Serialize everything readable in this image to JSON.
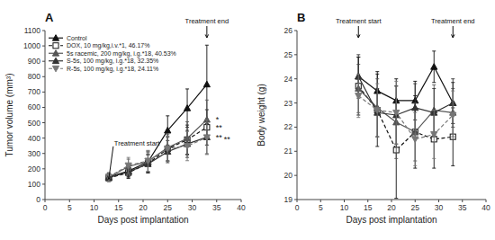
{
  "chart_data": [
    {
      "type": "line",
      "title": "A",
      "xlabel": "Days post implantation",
      "ylabel": "Tumor volume (mm³)",
      "x": [
        13,
        17,
        21,
        25,
        29,
        33
      ],
      "xlim": [
        0,
        40
      ],
      "ylim": [
        0,
        1100
      ],
      "xticks": [
        0,
        5,
        10,
        15,
        20,
        25,
        30,
        35,
        40
      ],
      "yticks": [
        0,
        100,
        200,
        300,
        400,
        500,
        600,
        700,
        800,
        900,
        1000,
        1100
      ],
      "grid": false,
      "legend": "upper left",
      "series": [
        {
          "name": "Control",
          "color": "#111111",
          "marker": "triangle-up",
          "line_style": "solid",
          "values": [
            148,
            185,
            245,
            450,
            595,
            750
          ],
          "errors": [
            22,
            35,
            65,
            95,
            125,
            255
          ]
        },
        {
          "name": "DOX, 10 mg/kg,i.v.*1, 46.17%",
          "color": "#111111",
          "marker": "square-open",
          "line_style": "dashed",
          "values": [
            140,
            175,
            235,
            330,
            390,
            470
          ],
          "errors": [
            22,
            38,
            62,
            78,
            95,
            115
          ]
        },
        {
          "name": "5s racemic, 200 mg/kg, i.g.*18, 40.53%",
          "color": "#555555",
          "marker": "triangle-up",
          "line_style": "solid",
          "values": [
            145,
            215,
            248,
            338,
            398,
            520
          ],
          "errors": [
            25,
            48,
            68,
            88,
            108,
            128
          ]
        },
        {
          "name": "S-5s, 100 mg/kg, i.g.*18, 32.35%",
          "color": "#333333",
          "marker": "triangle-up",
          "line_style": "solid",
          "values": [
            143,
            180,
            232,
            312,
            362,
            406
          ],
          "errors": [
            25,
            38,
            58,
            72,
            88,
            108
          ]
        },
        {
          "name": "R-5s, 100 mg/kg, i.g.*18, 24.11%",
          "color": "#777777",
          "marker": "triangle-down",
          "line_style": "dashed",
          "values": [
            148,
            222,
            252,
            332,
            348,
            405
          ],
          "errors": [
            28,
            52,
            68,
            82,
            95,
            112
          ]
        }
      ],
      "annotations": [
        {
          "text": "Treatment start",
          "x": 13
        },
        {
          "text": "Treatment end",
          "x": 33
        },
        {
          "text": "*",
          "x": 34.8,
          "y": 520
        },
        {
          "text": "**",
          "x": 34.8,
          "y": 468
        },
        {
          "text": "**",
          "x": 34.8,
          "y": 406
        },
        {
          "text": "**",
          "x": 34.8,
          "y": 390
        }
      ]
    },
    {
      "type": "line",
      "title": "B",
      "xlabel": "Days post implantation",
      "ylabel": "Body weight (g)",
      "x": [
        13,
        17,
        21,
        25,
        29,
        33
      ],
      "xlim": [
        0,
        40
      ],
      "ylim": [
        19,
        26
      ],
      "xticks": [
        0,
        5,
        10,
        15,
        20,
        25,
        30,
        35,
        40
      ],
      "yticks": [
        19,
        20,
        21,
        22,
        23,
        24,
        25,
        26
      ],
      "grid": false,
      "series": [
        {
          "color": "#111111",
          "marker": "triangle-up",
          "line_style": "solid",
          "values": [
            24.1,
            23.5,
            23.1,
            23.1,
            24.5,
            23.0
          ],
          "errors": [
            0.8,
            0.8,
            0.9,
            0.8,
            0.65,
            0.85
          ]
        },
        {
          "color": "#111111",
          "marker": "square-open",
          "line_style": "dashed",
          "values": [
            23.7,
            22.7,
            21.05,
            21.8,
            21.5,
            21.6
          ],
          "errors": [
            1.2,
            1.5,
            2.0,
            1.5,
            1.2,
            1.2
          ]
        },
        {
          "color": "#555555",
          "marker": "triangle-up",
          "line_style": "solid",
          "values": [
            23.6,
            22.8,
            22.2,
            21.8,
            22.7,
            22.6
          ],
          "errors": [
            1.0,
            1.2,
            1.5,
            1.2,
            1.05,
            1.0
          ]
        },
        {
          "color": "#333333",
          "marker": "triangle-up",
          "line_style": "solid",
          "values": [
            24.1,
            22.6,
            22.5,
            22.8,
            22.6,
            23.0
          ],
          "errors": [
            0.9,
            1.0,
            1.2,
            1.0,
            1.0,
            1.0
          ]
        },
        {
          "color": "#777777",
          "marker": "triangle-down",
          "line_style": "dashed",
          "values": [
            23.3,
            22.7,
            22.6,
            21.5,
            21.7,
            22.5
          ],
          "errors": [
            0.9,
            1.1,
            1.3,
            1.1,
            1.0,
            1.0
          ]
        }
      ],
      "annotations": [
        {
          "text": "Treatment start",
          "x": 13
        },
        {
          "text": "Treatment end",
          "x": 33
        }
      ]
    }
  ]
}
